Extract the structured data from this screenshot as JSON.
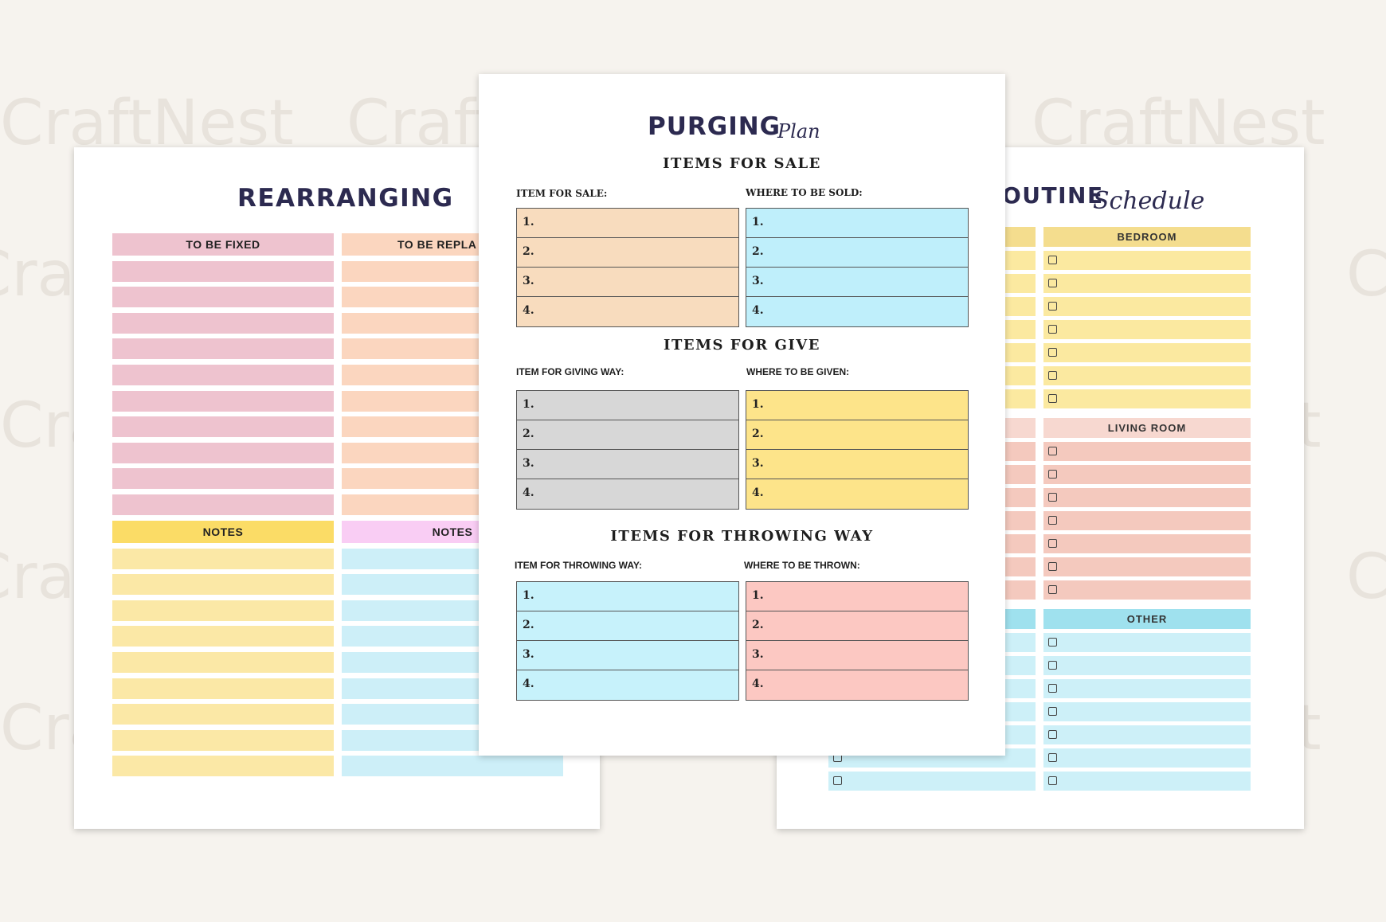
{
  "watermark": "CraftNest",
  "left_sheet": {
    "title": "REARRANGING",
    "column1": {
      "header": "TO BE FIXED",
      "rows": 10,
      "color": "#eec3cf"
    },
    "column2": {
      "header": "TO BE REPLA",
      "rows": 10,
      "color": "#fbd6bf"
    },
    "notes1": {
      "header": "NOTES",
      "header_color": "#fbdc66",
      "color": "#fbe8a6",
      "rows": 9
    },
    "notes2": {
      "header": "NOTES",
      "header_color": "#f9cdf4",
      "color": "#cdeff8",
      "rows": 9
    }
  },
  "center_sheet": {
    "title": "PURGING",
    "title_script": "Plan",
    "sections": [
      {
        "title": "ITEMS FOR SALE",
        "left_label": "ITEM FOR SALE:",
        "right_label": "WHERE TO BE SOLD:",
        "left_color": "#f8dcbe",
        "right_color": "#bfeffb",
        "items": [
          "1.",
          "2.",
          "3.",
          "4."
        ]
      },
      {
        "title": "ITEMS FOR GIVE",
        "left_label": "ITEM FOR GIVING WAY:",
        "right_label": "WHERE TO BE GIVEN:",
        "left_color": "#d7d7d7",
        "right_color": "#fde48a",
        "items": [
          "1.",
          "2.",
          "3.",
          "4."
        ]
      },
      {
        "title": "ITEMS FOR THROWING WAY",
        "left_label": "ITEM FOR THROWING WAY:",
        "right_label": "WHERE TO BE THROWN:",
        "left_color": "#c7f2fb",
        "right_color": "#fcc8c2",
        "items": [
          "1.",
          "2.",
          "3.",
          "4."
        ]
      }
    ]
  },
  "right_sheet": {
    "title": "OUTINE",
    "title_script": "Schedule",
    "groups": [
      {
        "header": "BEDROOM",
        "header_color": "#f4dd8e",
        "color": "#fbe9a0",
        "rows": 7
      },
      {
        "header": "LIVING ROOM",
        "header_color": "#f7d8d0",
        "color": "#f4c9be",
        "rows": 7
      },
      {
        "header": "OTHER",
        "header_color": "#9fe1ee",
        "color": "#cdf0f8",
        "rows": 7
      }
    ]
  }
}
